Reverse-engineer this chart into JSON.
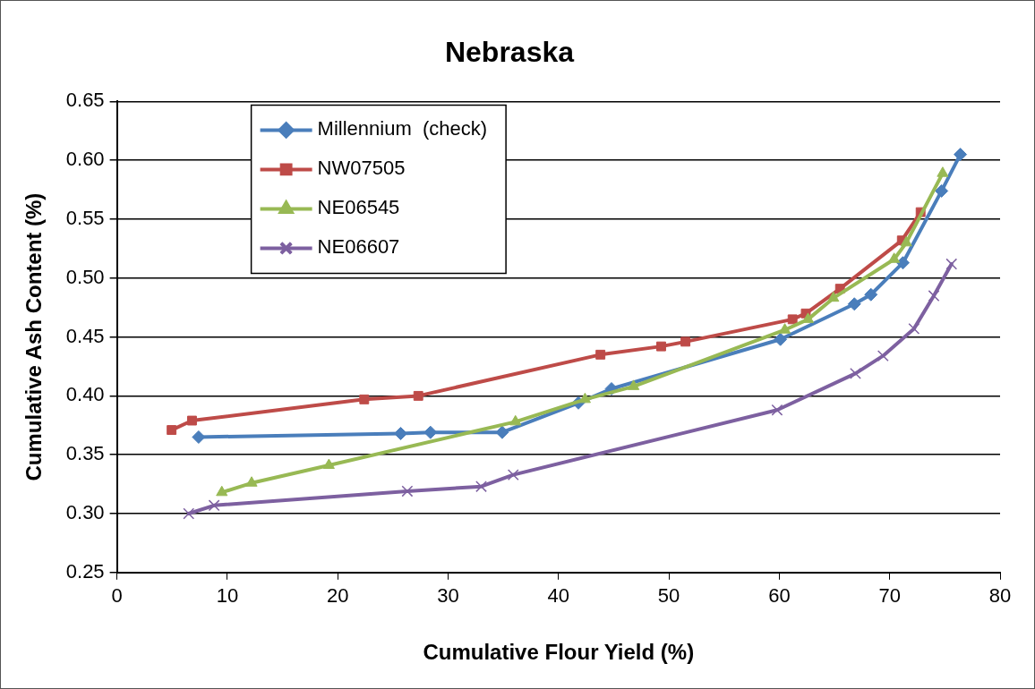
{
  "chart_data": {
    "type": "line",
    "title": "Nebraska",
    "xlabel": "Cumulative Flour Yield (%)",
    "ylabel": "Cumulative Ash Content (%)",
    "xlim": [
      0,
      80
    ],
    "xticks": [
      0,
      10,
      20,
      30,
      40,
      50,
      60,
      70,
      80
    ],
    "ylim": [
      0.25,
      0.65
    ],
    "yticks": [
      0.25,
      {
        "value": 0.3,
        "label": "0.30"
      },
      0.35,
      {
        "value": 0.4,
        "label": "0.40"
      },
      0.45,
      {
        "value": 0.5,
        "label": "0.50"
      },
      0.55,
      {
        "value": 0.6,
        "label": "0.60"
      },
      0.65
    ],
    "grid": "y",
    "legend": "top left",
    "line_style": "solid",
    "series": [
      {
        "name": "Millennium  (check)",
        "color": "#4a7ebb",
        "marker": "diamond",
        "x": [
          7.4,
          25.7,
          28.4,
          34.9,
          41.8,
          44.8,
          60.1,
          66.8,
          68.3,
          71.2,
          74.7,
          76.4
        ],
        "values": [
          0.365,
          0.368,
          0.369,
          0.369,
          0.394,
          0.406,
          0.448,
          0.478,
          0.486,
          0.513,
          0.574,
          0.605
        ]
      },
      {
        "name": "NW07505",
        "color": "#be4b48",
        "marker": "square",
        "x": [
          4.95,
          6.8,
          22.4,
          27.3,
          43.8,
          49.3,
          51.5,
          61.2,
          62.4,
          65.5,
          71.1,
          72.8
        ],
        "values": [
          0.371,
          0.379,
          0.397,
          0.4,
          0.435,
          0.442,
          0.446,
          0.465,
          0.47,
          0.491,
          0.532,
          0.556
        ]
      },
      {
        "name": "NE06545",
        "color": "#98b954",
        "marker": "triangle",
        "x": [
          9.5,
          12.2,
          19.2,
          36.1,
          42.4,
          46.8,
          60.5,
          62.6,
          64.9,
          70.4,
          71.5,
          74.8
        ],
        "values": [
          0.318,
          0.326,
          0.341,
          0.378,
          0.397,
          0.408,
          0.456,
          0.465,
          0.483,
          0.516,
          0.53,
          0.589
        ]
      },
      {
        "name": "NE06607",
        "color": "#7d60a0",
        "marker": "cross",
        "x": [
          6.5,
          8.8,
          26.3,
          33.0,
          35.9,
          59.8,
          66.9,
          69.4,
          72.2,
          74.0,
          75.6
        ],
        "values": [
          0.3,
          0.307,
          0.319,
          0.323,
          0.333,
          0.388,
          0.419,
          0.434,
          0.457,
          0.485,
          0.512
        ]
      }
    ]
  }
}
